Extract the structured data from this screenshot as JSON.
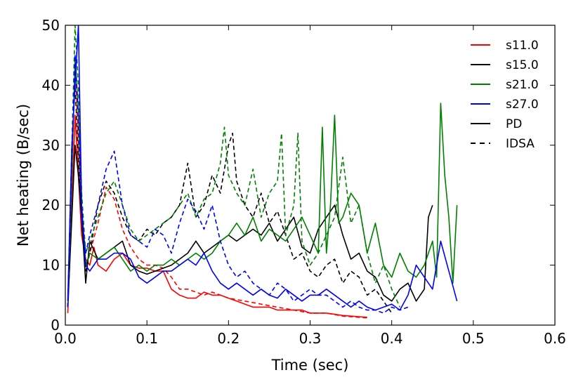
{
  "chart_data": {
    "type": "line",
    "title": "",
    "xlabel": "Time (sec)",
    "ylabel": "Net heating (B/sec)",
    "xlim": [
      0.0,
      0.6
    ],
    "ylim": [
      0,
      50
    ],
    "xticks": [
      0.0,
      0.1,
      0.2,
      0.3,
      0.4,
      0.5,
      0.6
    ],
    "xtick_labels": [
      "0.0",
      "0.1",
      "0.2",
      "0.3",
      "0.4",
      "0.5",
      "0.6"
    ],
    "yticks": [
      0,
      10,
      20,
      30,
      40,
      50
    ],
    "ytick_labels": [
      "0",
      "10",
      "20",
      "30",
      "40",
      "50"
    ],
    "grid": false,
    "legend_position": "top-right",
    "legend": [
      {
        "label": "s11.0",
        "color": "#ff0000",
        "style": "solid"
      },
      {
        "label": "s15.0",
        "color": "#000000",
        "style": "solid"
      },
      {
        "label": "s21.0",
        "color": "#008000",
        "style": "solid"
      },
      {
        "label": "s27.0",
        "color": "#0000ff",
        "style": "solid"
      },
      {
        "label": "PD",
        "color": "#000000",
        "style": "solid"
      },
      {
        "label": "IDSA",
        "color": "#000000",
        "style": "dashed"
      }
    ],
    "series": [
      {
        "name": "s11.0 PD",
        "model": "s11.0",
        "scheme": "PD",
        "color": "#ff0000",
        "style": "solid",
        "x": [
          0.003,
          0.008,
          0.012,
          0.016,
          0.02,
          0.025,
          0.03,
          0.035,
          0.04,
          0.05,
          0.06,
          0.07,
          0.08,
          0.09,
          0.1,
          0.11,
          0.12,
          0.13,
          0.14,
          0.15,
          0.16,
          0.17,
          0.18,
          0.19,
          0.2,
          0.21,
          0.22,
          0.23,
          0.24,
          0.25,
          0.26,
          0.27,
          0.28,
          0.29,
          0.3,
          0.31,
          0.32,
          0.33,
          0.34,
          0.35,
          0.36,
          0.37
        ],
        "y": [
          2,
          20,
          35,
          25,
          15,
          11,
          10,
          13,
          10,
          9,
          11,
          12,
          10,
          9.5,
          9.5,
          9,
          9,
          6,
          5,
          4.5,
          4.5,
          5.5,
          5,
          5,
          4.5,
          4,
          3.5,
          3,
          3,
          3,
          2.5,
          2.5,
          2.5,
          2.5,
          2,
          2,
          2,
          1.8,
          1.6,
          1.5,
          1.4,
          1.3
        ]
      },
      {
        "name": "s11.0 IDSA",
        "model": "s11.0",
        "scheme": "IDSA",
        "color": "#ff0000",
        "style": "dashed",
        "x": [
          0.003,
          0.008,
          0.012,
          0.016,
          0.02,
          0.025,
          0.03,
          0.04,
          0.05,
          0.06,
          0.07,
          0.08,
          0.09,
          0.1,
          0.11,
          0.12,
          0.13,
          0.14,
          0.15,
          0.16,
          0.17,
          0.18,
          0.19,
          0.2,
          0.22,
          0.24,
          0.26,
          0.28,
          0.3,
          0.32,
          0.34,
          0.36,
          0.37
        ],
        "y": [
          3,
          25,
          45,
          30,
          18,
          10,
          12,
          17,
          23,
          21,
          16,
          13,
          11,
          10,
          10,
          9.5,
          8,
          6,
          6,
          5.5,
          5,
          5.5,
          5,
          4.5,
          4,
          3.5,
          3,
          2.5,
          2,
          2,
          1.5,
          1.3,
          1.2
        ]
      },
      {
        "name": "s15.0 PD",
        "model": "s15.0",
        "scheme": "PD",
        "color": "#000000",
        "style": "solid",
        "x": [
          0.003,
          0.008,
          0.012,
          0.016,
          0.02,
          0.025,
          0.03,
          0.04,
          0.05,
          0.06,
          0.07,
          0.08,
          0.09,
          0.1,
          0.11,
          0.12,
          0.13,
          0.14,
          0.15,
          0.16,
          0.17,
          0.18,
          0.19,
          0.2,
          0.21,
          0.22,
          0.23,
          0.24,
          0.25,
          0.26,
          0.27,
          0.28,
          0.29,
          0.3,
          0.31,
          0.32,
          0.33,
          0.34,
          0.35,
          0.36,
          0.37,
          0.38,
          0.39,
          0.4,
          0.41,
          0.42,
          0.43,
          0.44,
          0.445,
          0.45
        ],
        "y": [
          3,
          18,
          30,
          25,
          18,
          7,
          14,
          11,
          12,
          13,
          14,
          10,
          9,
          8.5,
          9,
          9.5,
          10,
          11,
          12,
          14,
          12,
          13,
          14,
          15,
          14,
          15,
          16,
          15,
          17,
          14,
          16,
          18,
          13,
          12,
          16,
          18,
          20,
          15,
          11,
          12,
          9,
          8,
          5,
          4,
          6,
          7,
          4,
          6,
          18,
          20
        ]
      },
      {
        "name": "s15.0 IDSA",
        "model": "s15.0",
        "scheme": "IDSA",
        "color": "#000000",
        "style": "dashed",
        "x": [
          0.003,
          0.008,
          0.012,
          0.016,
          0.02,
          0.025,
          0.03,
          0.04,
          0.05,
          0.06,
          0.07,
          0.08,
          0.09,
          0.1,
          0.11,
          0.12,
          0.13,
          0.14,
          0.15,
          0.16,
          0.17,
          0.18,
          0.19,
          0.2,
          0.205,
          0.21,
          0.22,
          0.23,
          0.24,
          0.25,
          0.26,
          0.27,
          0.28,
          0.29,
          0.3,
          0.31,
          0.32,
          0.33,
          0.34,
          0.35,
          0.36,
          0.37,
          0.38,
          0.39,
          0.4
        ],
        "y": [
          3,
          30,
          40,
          28,
          18,
          9,
          12,
          20,
          24,
          22,
          18,
          15,
          14,
          16,
          15,
          17,
          18,
          20,
          27,
          18,
          20,
          25,
          22,
          30,
          32,
          24,
          20,
          18,
          22,
          17,
          19,
          15,
          11,
          12,
          9,
          8,
          10,
          11,
          7,
          9,
          8,
          5,
          6,
          4,
          2
        ]
      },
      {
        "name": "s21.0 PD",
        "model": "s21.0",
        "scheme": "PD",
        "color": "#008000",
        "style": "solid",
        "x": [
          0.003,
          0.008,
          0.012,
          0.016,
          0.02,
          0.025,
          0.03,
          0.04,
          0.05,
          0.06,
          0.07,
          0.08,
          0.09,
          0.1,
          0.11,
          0.12,
          0.13,
          0.14,
          0.15,
          0.16,
          0.17,
          0.18,
          0.19,
          0.2,
          0.21,
          0.22,
          0.23,
          0.24,
          0.25,
          0.26,
          0.27,
          0.28,
          0.29,
          0.3,
          0.31,
          0.315,
          0.32,
          0.325,
          0.33,
          0.335,
          0.34,
          0.35,
          0.36,
          0.37,
          0.38,
          0.39,
          0.4,
          0.41,
          0.42,
          0.43,
          0.44,
          0.45,
          0.455,
          0.46,
          0.465,
          0.47,
          0.475,
          0.48
        ],
        "y": [
          3,
          25,
          45,
          35,
          20,
          10,
          12,
          11,
          12,
          13,
          11,
          9,
          10,
          9,
          10,
          10,
          11,
          10,
          11,
          12,
          11,
          12,
          14,
          15,
          17,
          15,
          18,
          14,
          16,
          15,
          14,
          16,
          18,
          15,
          12,
          33,
          12,
          20,
          35,
          17,
          18,
          22,
          20,
          12,
          17,
          10,
          8,
          12,
          9,
          8,
          10,
          14,
          8,
          37,
          25,
          18,
          7,
          20
        ]
      },
      {
        "name": "s21.0 IDSA",
        "model": "s21.0",
        "scheme": "IDSA",
        "color": "#008000",
        "style": "dashed",
        "x": [
          0.003,
          0.008,
          0.012,
          0.016,
          0.02,
          0.025,
          0.03,
          0.04,
          0.05,
          0.06,
          0.07,
          0.08,
          0.09,
          0.1,
          0.11,
          0.12,
          0.13,
          0.14,
          0.15,
          0.16,
          0.17,
          0.18,
          0.19,
          0.195,
          0.2,
          0.21,
          0.22,
          0.23,
          0.24,
          0.25,
          0.26,
          0.265,
          0.27,
          0.28,
          0.285,
          0.29,
          0.3,
          0.31,
          0.32,
          0.33,
          0.34,
          0.35,
          0.36,
          0.37,
          0.38,
          0.39,
          0.4,
          0.41
        ],
        "y": [
          3,
          30,
          50,
          40,
          22,
          12,
          14,
          18,
          22,
          24,
          20,
          16,
          14,
          15,
          16,
          17,
          18,
          20,
          22,
          18,
          21,
          22,
          27,
          33,
          25,
          22,
          20,
          26,
          18,
          22,
          24,
          32,
          15,
          20,
          32,
          14,
          10,
          12,
          15,
          18,
          28,
          17,
          20,
          12,
          7,
          10,
          6,
          3
        ]
      },
      {
        "name": "s27.0 PD",
        "model": "s27.0",
        "scheme": "PD",
        "color": "#0000ff",
        "style": "solid",
        "x": [
          0.003,
          0.008,
          0.012,
          0.016,
          0.02,
          0.025,
          0.03,
          0.04,
          0.05,
          0.06,
          0.07,
          0.08,
          0.09,
          0.1,
          0.11,
          0.12,
          0.13,
          0.14,
          0.15,
          0.16,
          0.17,
          0.18,
          0.19,
          0.2,
          0.21,
          0.22,
          0.23,
          0.24,
          0.25,
          0.26,
          0.27,
          0.28,
          0.29,
          0.3,
          0.31,
          0.32,
          0.33,
          0.34,
          0.35,
          0.36,
          0.37,
          0.38,
          0.39,
          0.4,
          0.41,
          0.42,
          0.43,
          0.44,
          0.45,
          0.46,
          0.47,
          0.48
        ],
        "y": [
          4,
          30,
          40,
          50,
          20,
          10,
          9,
          11,
          11,
          12,
          12,
          11,
          8,
          7,
          8,
          9,
          9,
          10,
          11,
          10,
          12,
          9,
          7,
          6,
          7,
          6,
          5,
          6,
          5,
          4.5,
          6,
          5,
          4,
          5,
          5,
          6,
          5,
          4,
          3,
          4,
          3,
          2.5,
          3,
          3.5,
          2.5,
          5,
          10,
          8,
          6,
          14,
          9,
          4
        ]
      },
      {
        "name": "s27.0 IDSA",
        "model": "s27.0",
        "scheme": "IDSA",
        "color": "#0000ff",
        "style": "dashed",
        "x": [
          0.003,
          0.008,
          0.012,
          0.016,
          0.02,
          0.025,
          0.03,
          0.04,
          0.05,
          0.06,
          0.07,
          0.08,
          0.09,
          0.1,
          0.11,
          0.12,
          0.13,
          0.14,
          0.15,
          0.16,
          0.17,
          0.18,
          0.19,
          0.2,
          0.21,
          0.22,
          0.23,
          0.24,
          0.25,
          0.26,
          0.27,
          0.28,
          0.29,
          0.3,
          0.31,
          0.32,
          0.33,
          0.34,
          0.35,
          0.36,
          0.37,
          0.38,
          0.39,
          0.4,
          0.41,
          0.42
        ],
        "y": [
          3,
          28,
          45,
          35,
          18,
          12,
          15,
          20,
          26,
          29,
          20,
          15,
          14,
          13,
          16,
          15,
          12,
          17,
          21,
          19,
          16,
          20,
          14,
          10,
          8,
          9,
          7,
          6,
          5,
          7,
          6,
          4,
          5,
          6,
          5,
          5,
          4,
          3,
          4,
          3,
          2.5,
          2.5,
          2,
          3,
          2.5,
          3
        ]
      }
    ]
  }
}
